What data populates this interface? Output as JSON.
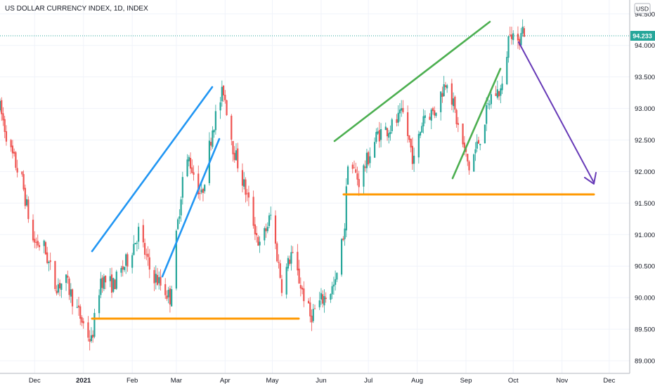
{
  "chart_data": {
    "type": "candlestick",
    "title": "US DOLLAR CURRENCY INDEX, 1D, INDEX",
    "currency": "USD",
    "last_price": "94.233",
    "ylim": [
      88.8,
      94.72
    ],
    "y_ticks": [
      "94.500",
      "94.000",
      "93.500",
      "93.000",
      "92.500",
      "92.000",
      "91.500",
      "91.000",
      "90.500",
      "90.000",
      "89.500",
      "89.000"
    ],
    "x_ticks": [
      {
        "label": "Dec",
        "date": "2020-12-01",
        "bold": false
      },
      {
        "label": "2021",
        "date": "2021-01-01",
        "bold": true
      },
      {
        "label": "Feb",
        "date": "2021-02-01",
        "bold": false
      },
      {
        "label": "Mar",
        "date": "2021-03-01",
        "bold": false
      },
      {
        "label": "Apr",
        "date": "2021-04-01",
        "bold": false
      },
      {
        "label": "May",
        "date": "2021-05-01",
        "bold": false
      },
      {
        "label": "Jun",
        "date": "2021-06-01",
        "bold": false
      },
      {
        "label": "Jul",
        "date": "2021-07-01",
        "bold": false
      },
      {
        "label": "Aug",
        "date": "2021-08-01",
        "bold": false
      },
      {
        "label": "Sep",
        "date": "2021-09-01",
        "bold": false
      },
      {
        "label": "Oct",
        "date": "2021-10-01",
        "bold": false
      },
      {
        "label": "Nov",
        "date": "2021-11-01",
        "bold": false
      },
      {
        "label": "Dec",
        "date": "2021-12-01",
        "bold": false
      }
    ],
    "grid": true,
    "colors": {
      "up": "#26a69a",
      "down": "#ef5350",
      "blue_lines": "#2196f3",
      "green_lines": "#4caf50",
      "orange_lines": "#ff9800",
      "arrow": "#673ab7",
      "price_label": "#26a69a",
      "grid": "#f0f3fa"
    },
    "price_path": [
      [
        "2020-11-09",
        93.0
      ],
      [
        "2020-11-16",
        92.3
      ],
      [
        "2020-11-23",
        91.85
      ],
      [
        "2020-11-30",
        90.9
      ],
      [
        "2020-12-07",
        90.8
      ],
      [
        "2020-12-14",
        90.2
      ],
      [
        "2020-12-21",
        90.25
      ],
      [
        "2020-12-28",
        89.8
      ],
      [
        "2021-01-06",
        89.3
      ],
      [
        "2021-01-12",
        90.3
      ],
      [
        "2021-01-20",
        90.2
      ],
      [
        "2021-01-29",
        90.6
      ],
      [
        "2021-02-05",
        91.05
      ],
      [
        "2021-02-12",
        90.45
      ],
      [
        "2021-02-25",
        90.0
      ],
      [
        "2021-03-05",
        91.9
      ],
      [
        "2021-03-09",
        92.2
      ],
      [
        "2021-03-17",
        91.6
      ],
      [
        "2021-03-24",
        92.7
      ],
      [
        "2021-03-31",
        93.3
      ],
      [
        "2021-04-06",
        92.4
      ],
      [
        "2021-04-15",
        91.6
      ],
      [
        "2021-04-23",
        90.8
      ],
      [
        "2021-04-30",
        91.3
      ],
      [
        "2021-05-07",
        90.2
      ],
      [
        "2021-05-13",
        90.7
      ],
      [
        "2021-05-25",
        89.7
      ],
      [
        "2021-06-01",
        89.95
      ],
      [
        "2021-06-10",
        90.2
      ],
      [
        "2021-06-16",
        91.15
      ],
      [
        "2021-06-18",
        92.2
      ],
      [
        "2021-06-25",
        91.85
      ],
      [
        "2021-07-07",
        92.6
      ],
      [
        "2021-07-15",
        92.7
      ],
      [
        "2021-07-23",
        92.9
      ],
      [
        "2021-07-30",
        92.15
      ],
      [
        "2021-08-05",
        92.9
      ],
      [
        "2021-08-12",
        92.95
      ],
      [
        "2021-08-20",
        93.5
      ],
      [
        "2021-08-27",
        92.7
      ],
      [
        "2021-09-03",
        92.05
      ],
      [
        "2021-09-10",
        92.55
      ],
      [
        "2021-09-17",
        93.2
      ],
      [
        "2021-09-24",
        93.3
      ],
      [
        "2021-09-29",
        94.3
      ],
      [
        "2021-10-04",
        93.95
      ],
      [
        "2021-10-06",
        94.3
      ],
      [
        "2021-10-08",
        94.23
      ]
    ]
  }
}
